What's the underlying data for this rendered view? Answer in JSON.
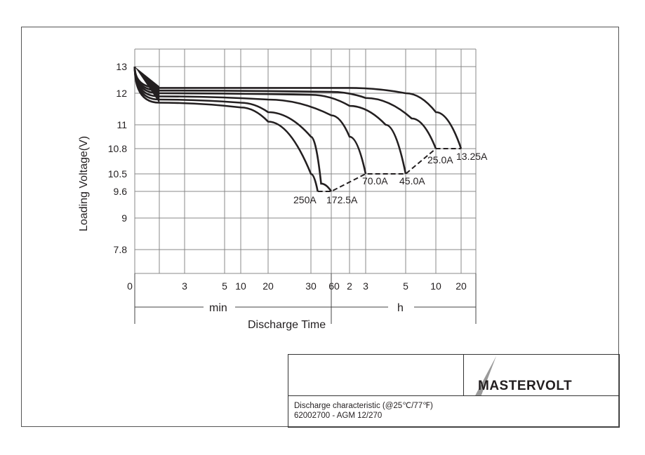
{
  "chart_data": {
    "type": "line",
    "title": "",
    "xlabel": "Discharge Time",
    "ylabel": "Loading  Voltage(V)",
    "y_ticks": [
      "13",
      "12",
      "11",
      "10.8",
      "10.5",
      "9.6",
      "9",
      "7.8"
    ],
    "x_ticks": [
      "0",
      "3",
      "5",
      "10",
      "20",
      "30",
      "60",
      "2",
      "3",
      "5",
      "10",
      "20"
    ],
    "x_unit_segments": [
      "min",
      "h"
    ],
    "grid": true,
    "series": [
      {
        "name": "250A",
        "points": [
          [
            0,
            13.0
          ],
          [
            1.5,
            11.7
          ],
          [
            10,
            11.55
          ],
          [
            20,
            11.1
          ],
          [
            30,
            10.5
          ],
          [
            40,
            9.6
          ]
        ]
      },
      {
        "name": "172.5A",
        "points": [
          [
            0,
            13.0
          ],
          [
            1.5,
            11.8
          ],
          [
            10,
            11.7
          ],
          [
            20,
            11.4
          ],
          [
            30,
            10.9
          ],
          [
            45,
            10.0
          ],
          [
            60,
            9.6
          ]
        ]
      },
      {
        "name": "70.0A",
        "points": [
          [
            0,
            13.0
          ],
          [
            1.5,
            11.9
          ],
          [
            20,
            11.8
          ],
          [
            60,
            11.3
          ],
          [
            120,
            10.9
          ],
          [
            180,
            10.5
          ]
        ]
      },
      {
        "name": "45.0A",
        "points": [
          [
            0,
            13.0
          ],
          [
            1.5,
            12.0
          ],
          [
            30,
            11.95
          ],
          [
            120,
            11.6
          ],
          [
            240,
            11.0
          ],
          [
            300,
            10.5
          ]
        ]
      },
      {
        "name": "25.0A",
        "points": [
          [
            0,
            13.0
          ],
          [
            1.5,
            12.1
          ],
          [
            60,
            12.05
          ],
          [
            180,
            11.85
          ],
          [
            360,
            11.2
          ],
          [
            600,
            10.8
          ]
        ]
      },
      {
        "name": "13.25A",
        "points": [
          [
            0,
            13.0
          ],
          [
            1.5,
            12.2
          ],
          [
            120,
            12.2
          ],
          [
            300,
            12.0
          ],
          [
            600,
            11.4
          ],
          [
            1200,
            10.8
          ]
        ]
      }
    ],
    "cutoff_line": {
      "points": [
        [
          40,
          9.6
        ],
        [
          60,
          9.6
        ],
        [
          180,
          10.5
        ],
        [
          300,
          10.5
        ],
        [
          600,
          10.8
        ],
        [
          1200,
          10.8
        ]
      ]
    }
  },
  "title_block": {
    "caption_line1": "Discharge characteristic (@25℃/77℉)",
    "caption_line2": "62002700 - AGM 12/270",
    "logo_text": "MASTERVOLT"
  }
}
